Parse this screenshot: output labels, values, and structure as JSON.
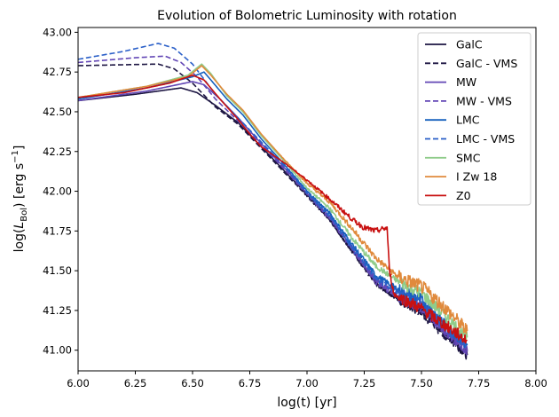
{
  "chart_data": {
    "type": "line",
    "title": "Evolution of Bolometric Luminosity with rotation",
    "xlabel": "log(t) [yr]",
    "ylabel_parts": {
      "pre": "log(",
      "italic": "L",
      "sub": "Bol",
      "mid": ") [erg s",
      "sup": "−1",
      "post": "]"
    },
    "xlim": [
      6.0,
      8.0
    ],
    "ylim": [
      40.87,
      43.03
    ],
    "xticks": [
      6.0,
      6.25,
      6.5,
      6.75,
      7.0,
      7.25,
      7.5,
      7.75,
      8.0
    ],
    "yticks": [
      41.0,
      41.25,
      41.5,
      41.75,
      42.0,
      42.25,
      42.5,
      42.75,
      43.0
    ],
    "xtick_labels": [
      "6.00",
      "6.25",
      "6.50",
      "6.75",
      "7.00",
      "7.25",
      "7.50",
      "7.75",
      "8.00"
    ],
    "ytick_labels": [
      "41.00",
      "41.25",
      "41.50",
      "41.75",
      "42.00",
      "42.25",
      "42.50",
      "42.75",
      "43.00"
    ],
    "grid": false,
    "legend_position": "top-right",
    "series": [
      {
        "name": "GalC",
        "color": "#1c1542",
        "dash": false,
        "noise": 0.03,
        "points": [
          [
            6.0,
            42.57
          ],
          [
            6.25,
            42.61
          ],
          [
            6.45,
            42.65
          ],
          [
            6.52,
            42.62
          ],
          [
            6.6,
            42.54
          ],
          [
            6.7,
            42.43
          ],
          [
            6.8,
            42.28
          ],
          [
            6.9,
            42.13
          ],
          [
            7.0,
            41.98
          ],
          [
            7.1,
            41.82
          ],
          [
            7.2,
            41.62
          ],
          [
            7.3,
            41.42
          ],
          [
            7.4,
            41.32
          ],
          [
            7.5,
            41.25
          ],
          [
            7.6,
            41.12
          ],
          [
            7.7,
            40.97
          ]
        ]
      },
      {
        "name": "GalC - VMS",
        "color": "#1c1542",
        "dash": true,
        "noise": 0.03,
        "points": [
          [
            6.0,
            42.79
          ],
          [
            6.35,
            42.8
          ],
          [
            6.42,
            42.77
          ],
          [
            6.5,
            42.68
          ],
          [
            6.6,
            42.53
          ],
          [
            6.7,
            42.42
          ],
          [
            6.8,
            42.27
          ],
          [
            6.9,
            42.12
          ],
          [
            7.0,
            41.97
          ],
          [
            7.1,
            41.82
          ],
          [
            7.2,
            41.62
          ],
          [
            7.3,
            41.42
          ],
          [
            7.4,
            41.32
          ],
          [
            7.5,
            41.24
          ],
          [
            7.6,
            41.1
          ],
          [
            7.7,
            40.98
          ]
        ]
      },
      {
        "name": "MW",
        "color": "#6246b5",
        "dash": false,
        "noise": 0.035,
        "points": [
          [
            6.0,
            42.57
          ],
          [
            6.3,
            42.63
          ],
          [
            6.5,
            42.69
          ],
          [
            6.55,
            42.67
          ],
          [
            6.62,
            42.58
          ],
          [
            6.7,
            42.46
          ],
          [
            6.8,
            42.3
          ],
          [
            6.9,
            42.15
          ],
          [
            7.0,
            41.99
          ],
          [
            7.1,
            41.84
          ],
          [
            7.2,
            41.64
          ],
          [
            7.3,
            41.44
          ],
          [
            7.4,
            41.34
          ],
          [
            7.5,
            41.28
          ],
          [
            7.6,
            41.14
          ],
          [
            7.7,
            41.0
          ]
        ]
      },
      {
        "name": "MW - VMS",
        "color": "#6246b5",
        "dash": true,
        "noise": 0.03,
        "points": [
          [
            6.0,
            42.81
          ],
          [
            6.25,
            42.84
          ],
          [
            6.38,
            42.85
          ],
          [
            6.45,
            42.81
          ],
          [
            6.52,
            42.72
          ],
          [
            6.6,
            42.58
          ],
          [
            6.7,
            42.44
          ],
          [
            6.8,
            42.29
          ],
          [
            6.9,
            42.14
          ],
          [
            7.0,
            41.98
          ],
          [
            7.1,
            41.83
          ],
          [
            7.2,
            41.63
          ],
          [
            7.3,
            41.43
          ],
          [
            7.4,
            41.33
          ],
          [
            7.5,
            41.26
          ],
          [
            7.6,
            41.12
          ],
          [
            7.7,
            41.0
          ]
        ]
      },
      {
        "name": "LMC",
        "color": "#1560bd",
        "dash": false,
        "noise": 0.035,
        "points": [
          [
            6.0,
            42.58
          ],
          [
            6.3,
            42.65
          ],
          [
            6.5,
            42.72
          ],
          [
            6.55,
            42.75
          ],
          [
            6.58,
            42.7
          ],
          [
            6.65,
            42.58
          ],
          [
            6.72,
            42.48
          ],
          [
            6.8,
            42.33
          ],
          [
            6.9,
            42.17
          ],
          [
            7.0,
            42.0
          ],
          [
            7.1,
            41.86
          ],
          [
            7.2,
            41.66
          ],
          [
            7.3,
            41.47
          ],
          [
            7.4,
            41.38
          ],
          [
            7.5,
            41.32
          ],
          [
            7.6,
            41.17
          ],
          [
            7.7,
            41.03
          ]
        ]
      },
      {
        "name": "LMC - VMS",
        "color": "#2a5fc8",
        "dash": true,
        "noise": 0.03,
        "points": [
          [
            6.0,
            42.83
          ],
          [
            6.2,
            42.88
          ],
          [
            6.35,
            42.93
          ],
          [
            6.42,
            42.9
          ],
          [
            6.5,
            42.8
          ],
          [
            6.6,
            42.61
          ],
          [
            6.7,
            42.46
          ],
          [
            6.8,
            42.31
          ],
          [
            6.9,
            42.16
          ],
          [
            7.0,
            41.99
          ],
          [
            7.1,
            41.84
          ],
          [
            7.2,
            41.64
          ],
          [
            7.3,
            41.45
          ],
          [
            7.4,
            41.36
          ],
          [
            7.5,
            41.3
          ],
          [
            7.6,
            41.15
          ],
          [
            7.7,
            41.02
          ]
        ]
      },
      {
        "name": "SMC",
        "color": "#8fcc8a",
        "dash": false,
        "noise": 0.035,
        "points": [
          [
            6.0,
            42.59
          ],
          [
            6.3,
            42.66
          ],
          [
            6.48,
            42.73
          ],
          [
            6.54,
            42.8
          ],
          [
            6.58,
            42.74
          ],
          [
            6.65,
            42.6
          ],
          [
            6.72,
            42.5
          ],
          [
            6.8,
            42.35
          ],
          [
            6.9,
            42.19
          ],
          [
            7.0,
            42.02
          ],
          [
            7.1,
            41.89
          ],
          [
            7.2,
            41.7
          ],
          [
            7.3,
            41.53
          ],
          [
            7.4,
            41.43
          ],
          [
            7.5,
            41.36
          ],
          [
            7.6,
            41.22
          ],
          [
            7.7,
            41.08
          ]
        ]
      },
      {
        "name": "I Zw 18",
        "color": "#e08a3c",
        "dash": false,
        "noise": 0.04,
        "points": [
          [
            6.0,
            42.59
          ],
          [
            6.3,
            42.66
          ],
          [
            6.48,
            42.72
          ],
          [
            6.54,
            42.79
          ],
          [
            6.58,
            42.73
          ],
          [
            6.65,
            42.61
          ],
          [
            6.72,
            42.51
          ],
          [
            6.8,
            42.36
          ],
          [
            6.9,
            42.2
          ],
          [
            7.0,
            42.05
          ],
          [
            7.1,
            41.93
          ],
          [
            7.2,
            41.76
          ],
          [
            7.3,
            41.58
          ],
          [
            7.4,
            41.46
          ],
          [
            7.5,
            41.4
          ],
          [
            7.6,
            41.27
          ],
          [
            7.7,
            41.12
          ]
        ]
      },
      {
        "name": "Z0",
        "color": "#c81010",
        "dash": false,
        "noise": 0.035,
        "points": [
          [
            6.0,
            42.59
          ],
          [
            6.2,
            42.62
          ],
          [
            6.4,
            42.68
          ],
          [
            6.5,
            42.73
          ],
          [
            6.55,
            42.7
          ],
          [
            6.62,
            42.58
          ],
          [
            6.7,
            42.45
          ],
          [
            6.75,
            42.36
          ],
          [
            6.8,
            42.28
          ],
          [
            6.9,
            42.18
          ],
          [
            7.0,
            42.07
          ],
          [
            7.1,
            41.95
          ],
          [
            7.2,
            41.82
          ],
          [
            7.25,
            41.77
          ],
          [
            7.3,
            41.75
          ],
          [
            7.35,
            41.77
          ],
          [
            7.36,
            41.5
          ],
          [
            7.38,
            41.35
          ],
          [
            7.45,
            41.3
          ],
          [
            7.5,
            41.26
          ],
          [
            7.6,
            41.16
          ],
          [
            7.7,
            41.06
          ]
        ]
      }
    ]
  }
}
